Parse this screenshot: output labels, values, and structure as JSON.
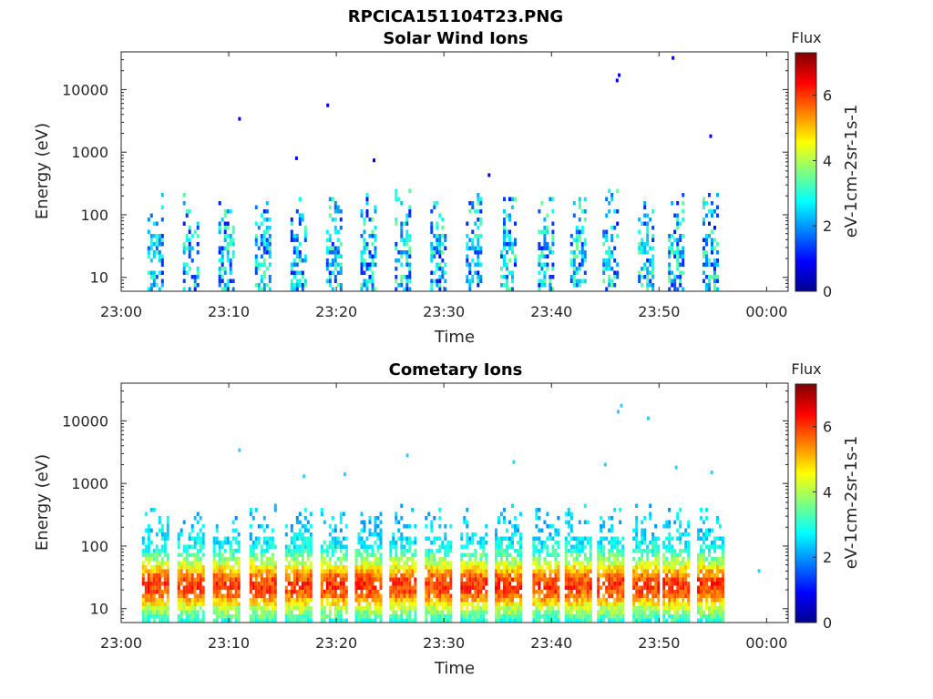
{
  "figure_title": "RPCICA151104T23.PNG",
  "chart_data": [
    {
      "type": "heatmap",
      "title": "Solar Wind Ions",
      "xlabel": "Time",
      "ylabel": "Energy (eV)",
      "x_ticks": [
        "23:00",
        "23:10",
        "23:20",
        "23:30",
        "23:40",
        "23:50",
        "00:00"
      ],
      "x_range": [
        "23:00",
        "00:02"
      ],
      "y_scale": "log",
      "y_ticks": [
        "10",
        "100",
        "1000",
        "10000"
      ],
      "y_range": [
        6,
        40000
      ],
      "colorbar": {
        "title": "Flux",
        "label": "eV-1cm-2sr-1s-1",
        "ticks": [
          "0",
          "2",
          "4",
          "6"
        ],
        "range": [
          0,
          7.3
        ],
        "colormap": "jet"
      },
      "bursts_minutes": [
        3.2,
        6.5,
        9.8,
        13.2,
        16.5,
        19.8,
        23.0,
        26.2,
        29.5,
        32.8,
        36.0,
        39.5,
        42.5,
        45.5,
        48.8,
        51.6,
        54.8
      ],
      "flux_level": "low (mostly 1-3.5)",
      "energy_range_eV": [
        6,
        300
      ]
    },
    {
      "type": "heatmap",
      "title": "Cometary Ions",
      "xlabel": "Time",
      "ylabel": "Energy (eV)",
      "x_ticks": [
        "23:00",
        "23:10",
        "23:20",
        "23:30",
        "23:40",
        "23:50",
        "00:00"
      ],
      "x_range": [
        "23:00",
        "00:02"
      ],
      "y_scale": "log",
      "y_ticks": [
        "10",
        "100",
        "1000",
        "10000"
      ],
      "y_range": [
        6,
        40000
      ],
      "colorbar": {
        "title": "Flux",
        "label": "eV-1cm-2sr-1s-1",
        "ticks": [
          "0",
          "2",
          "4",
          "6"
        ],
        "range": [
          0,
          7.3
        ],
        "colormap": "jet"
      },
      "bursts_minutes": [
        3.2,
        6.5,
        9.8,
        13.2,
        16.5,
        19.8,
        23.0,
        26.2,
        29.5,
        32.8,
        36.0,
        39.5,
        42.5,
        45.5,
        48.8,
        51.6,
        54.8
      ],
      "flux_level": "high (peak ~5-6 near 20-40 eV)",
      "energy_range_eV": [
        6,
        500
      ]
    }
  ]
}
